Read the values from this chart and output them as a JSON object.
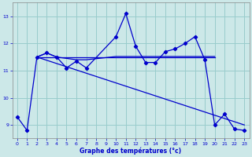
{
  "xlabel": "Graphe des températures (°c)",
  "background_color": "#cce8e8",
  "grid_color": "#99cccc",
  "line_color": "#0000cc",
  "xlim": [
    -0.5,
    23.5
  ],
  "ylim": [
    8.5,
    13.5
  ],
  "yticks": [
    9,
    10,
    11,
    12,
    13
  ],
  "xticks": [
    0,
    1,
    2,
    3,
    4,
    5,
    6,
    7,
    8,
    9,
    10,
    11,
    12,
    13,
    14,
    15,
    16,
    17,
    18,
    19,
    20,
    21,
    22,
    23
  ],
  "series_main": {
    "x": [
      0,
      1,
      2,
      3,
      4,
      5,
      6,
      7,
      10,
      11,
      12,
      13,
      14,
      15,
      16,
      17,
      18,
      19,
      20,
      21,
      22,
      23
    ],
    "y": [
      9.3,
      8.8,
      11.5,
      11.65,
      11.5,
      11.1,
      11.35,
      11.1,
      12.25,
      13.1,
      11.9,
      11.3,
      11.3,
      11.7,
      11.8,
      12.0,
      12.25,
      11.4,
      9.0,
      9.4,
      8.85,
      8.8
    ]
  },
  "series_flat": {
    "x": [
      2,
      3,
      4,
      5,
      6,
      7,
      10,
      11,
      12,
      13,
      14,
      15,
      16,
      17,
      18,
      19,
      20
    ],
    "y": [
      11.5,
      11.65,
      11.5,
      11.45,
      11.4,
      11.4,
      11.52,
      11.52,
      11.52,
      11.52,
      11.52,
      11.52,
      11.52,
      11.52,
      11.52,
      11.52,
      11.52
    ]
  },
  "series_diag": {
    "x": [
      2,
      23
    ],
    "y": [
      11.5,
      9.0
    ]
  },
  "series_hline": {
    "x": [
      2,
      20
    ],
    "y": [
      11.5,
      11.5
    ]
  }
}
